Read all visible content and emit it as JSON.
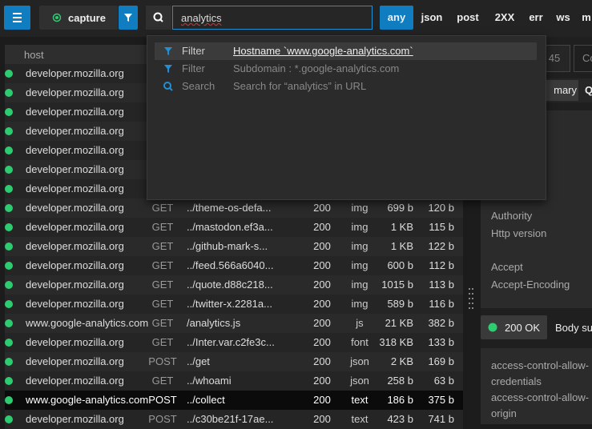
{
  "toolbar": {
    "capture": "capture",
    "search": "analytics",
    "type_filters": [
      "any",
      "json",
      "post",
      "2XX",
      "err",
      "ws",
      "m"
    ]
  },
  "dropdown": [
    {
      "kind": "Filter",
      "text": "Hostname `www.google-analytics.com`"
    },
    {
      "kind": "Filter",
      "text": "Subdomain : *.google-analytics.com"
    },
    {
      "kind": "Search",
      "text": "Search for “analytics” in URL"
    }
  ],
  "table": {
    "header": "host",
    "rows": [
      [
        "developer.mozilla.org"
      ],
      [
        "developer.mozilla.org"
      ],
      [
        "developer.mozilla.org"
      ],
      [
        "developer.mozilla.org"
      ],
      [
        "developer.mozilla.org"
      ],
      [
        "developer.mozilla.org"
      ],
      [
        "developer.mozilla.org"
      ],
      [
        "developer.mozilla.org",
        "GET",
        "../theme-os-defa...",
        "200",
        "img",
        "699 b",
        "120 b"
      ],
      [
        "developer.mozilla.org",
        "GET",
        "../mastodon.ef3a...",
        "200",
        "img",
        "1 KB",
        "115 b"
      ],
      [
        "developer.mozilla.org",
        "GET",
        "../github-mark-s...",
        "200",
        "img",
        "1 KB",
        "122 b"
      ],
      [
        "developer.mozilla.org",
        "GET",
        "../feed.566a6040...",
        "200",
        "img",
        "600 b",
        "112 b"
      ],
      [
        "developer.mozilla.org",
        "GET",
        "../quote.d88c218...",
        "200",
        "img",
        "1015 b",
        "113 b"
      ],
      [
        "developer.mozilla.org",
        "GET",
        "../twitter-x.2281a...",
        "200",
        "img",
        "589 b",
        "116 b"
      ],
      [
        "www.google-analytics.com",
        "GET",
        "/analytics.js",
        "200",
        "js",
        "21 KB",
        "382 b"
      ],
      [
        "developer.mozilla.org",
        "GET",
        "../Inter.var.c2fe3c...",
        "200",
        "font",
        "318 KB",
        "133 b"
      ],
      [
        "developer.mozilla.org",
        "POST",
        "../get",
        "200",
        "json",
        "2 KB",
        "169 b"
      ],
      [
        "developer.mozilla.org",
        "GET",
        "../whoami",
        "200",
        "json",
        "258 b",
        "63 b"
      ],
      [
        "www.google-analytics.com",
        "POST",
        "../collect",
        "200",
        "text",
        "186 b",
        "375 b"
      ],
      [
        "developer.mozilla.org",
        "POST",
        "../c30be21f-17ae...",
        "200",
        "text",
        "423 b",
        "741 b"
      ]
    ]
  },
  "details": {
    "tabs": [
      "45",
      "Co"
    ],
    "subtabs": [
      "mary",
      "Q"
    ],
    "labels": [
      "Authority",
      "Http version",
      "Accept",
      "Accept-Encoding"
    ],
    "status": "200 OK",
    "body_tab": "Body su",
    "headers": [
      "access-control-allow-credentials",
      "access-control-allow-origin"
    ]
  }
}
